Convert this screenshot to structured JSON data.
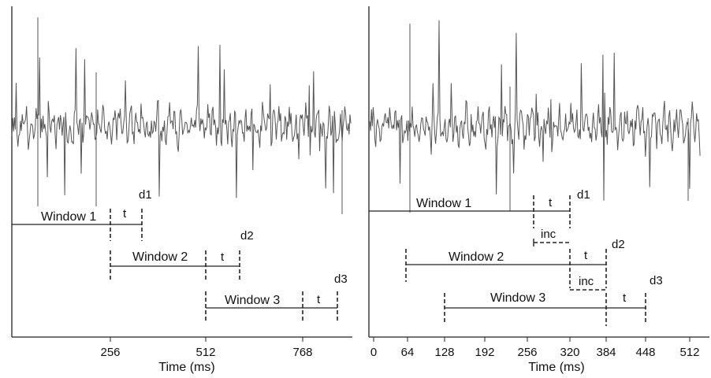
{
  "left_panel": {
    "xlabel": "Time (ms)",
    "ticks": [
      "256",
      "512",
      "768"
    ],
    "windows": [
      {
        "label": "Window 1",
        "t_label": "t",
        "d_label": "d1"
      },
      {
        "label": "Window 2",
        "t_label": "t",
        "d_label": "d2"
      },
      {
        "label": "Window 3",
        "t_label": "t",
        "d_label": "d3"
      }
    ]
  },
  "right_panel": {
    "xlabel": "Time (ms)",
    "ticks": [
      "0",
      "64",
      "128",
      "192",
      "256",
      "320",
      "384",
      "448",
      "512"
    ],
    "windows": [
      {
        "label": "Window 1",
        "t_label": "t",
        "d_label": "d1"
      },
      {
        "label": "Window 2",
        "t_label": "t",
        "d_label": "d2"
      },
      {
        "label": "Window 3",
        "t_label": "t",
        "d_label": "d3"
      }
    ],
    "inc_labels": [
      "inc",
      "inc"
    ]
  }
}
